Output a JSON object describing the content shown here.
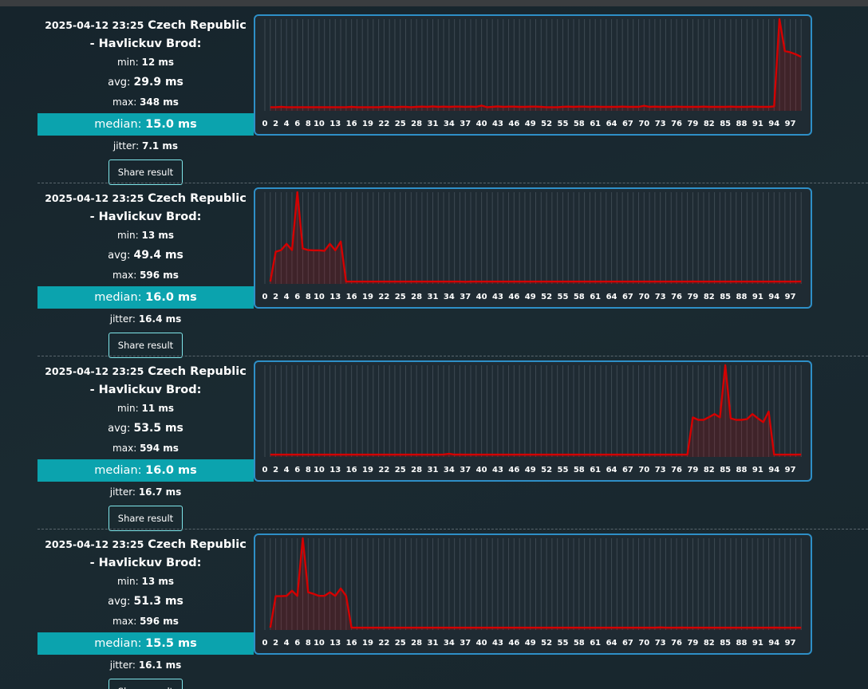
{
  "labels": {
    "min": "min:",
    "avg": "avg:",
    "max": "max:",
    "median": "median:",
    "jitter": "jitter:",
    "share": "Share result"
  },
  "chart_categories": [
    0,
    null,
    2,
    null,
    4,
    null,
    6,
    null,
    8,
    null,
    10,
    null,
    null,
    13,
    null,
    null,
    16,
    null,
    null,
    19,
    null,
    null,
    22,
    null,
    null,
    25,
    null,
    null,
    28,
    null,
    null,
    31,
    null,
    null,
    34,
    null,
    null,
    37,
    null,
    null,
    40,
    null,
    null,
    43,
    null,
    null,
    46,
    null,
    null,
    49,
    null,
    null,
    52,
    null,
    null,
    55,
    null,
    null,
    58,
    null,
    null,
    61,
    null,
    null,
    64,
    null,
    null,
    67,
    null,
    null,
    70,
    null,
    null,
    73,
    null,
    null,
    76,
    null,
    null,
    79,
    null,
    null,
    82,
    null,
    null,
    85,
    null,
    null,
    88,
    null,
    null,
    91,
    null,
    null,
    94,
    null,
    null,
    97,
    null,
    null
  ],
  "results": [
    {
      "date": "2025-04-12 23:25",
      "location": "Czech Republic - Havlickuv Brod:",
      "min": "12 ms",
      "avg": "29.9 ms",
      "max": "348 ms",
      "median": "15.0 ms",
      "jitter": "7.1 ms",
      "chart": {
        "type": "line",
        "color": "#d40000",
        "values": [
          null,
          14,
          14,
          15,
          14,
          14,
          14,
          14,
          14,
          14,
          14,
          14,
          14,
          14,
          14,
          14,
          15,
          14,
          14,
          14,
          14,
          14,
          15,
          15,
          14,
          15,
          15,
          14,
          15,
          16,
          15,
          17,
          15,
          16,
          15,
          16,
          16,
          15,
          16,
          15,
          20,
          14,
          15,
          17,
          15,
          16,
          16,
          15,
          15,
          16,
          16,
          15,
          14,
          14,
          14,
          15,
          16,
          15,
          16,
          16,
          15,
          16,
          15,
          15,
          15,
          15,
          16,
          15,
          15,
          15,
          19,
          15,
          16,
          15,
          15,
          15,
          16,
          15,
          15,
          15,
          15,
          16,
          15,
          15,
          15,
          15,
          16,
          15,
          15,
          15,
          16,
          15,
          15,
          15,
          17,
          348,
          227,
          222,
          215,
          205
        ]
      }
    },
    {
      "date": "2025-04-12 23:25",
      "location": "Czech Republic - Havlickuv Brod:",
      "min": "13 ms",
      "avg": "49.4 ms",
      "max": "596 ms",
      "median": "16.0 ms",
      "jitter": "16.4 ms",
      "chart": {
        "type": "line",
        "color": "#d40000",
        "values": [
          null,
          15,
          209,
          220,
          260,
          220,
          596,
          230,
          220,
          218,
          218,
          215,
          260,
          218,
          275,
          15,
          15,
          15,
          15,
          15,
          15,
          15,
          15,
          15,
          15,
          15,
          15,
          15,
          15,
          15,
          15,
          15,
          15,
          15,
          15,
          15,
          15,
          14,
          15,
          15,
          15,
          15,
          15,
          15,
          15,
          15,
          15,
          15,
          15,
          15,
          15,
          15,
          15,
          15,
          15,
          15,
          15,
          15,
          15,
          15,
          15,
          15,
          15,
          15,
          15,
          15,
          15,
          15,
          15,
          15,
          15,
          15,
          15,
          15,
          15,
          15,
          15,
          15,
          15,
          16,
          15,
          15,
          15,
          15,
          15,
          15,
          15,
          15,
          15,
          15,
          15,
          15,
          15,
          15,
          15,
          15,
          15,
          15,
          15,
          16
        ]
      }
    },
    {
      "date": "2025-04-12 23:25",
      "location": "Czech Republic - Havlickuv Brod:",
      "min": "11 ms",
      "avg": "53.5 ms",
      "max": "594 ms",
      "median": "16.0 ms",
      "jitter": "16.7 ms",
      "chart": {
        "type": "line",
        "color": "#d40000",
        "values": [
          null,
          15,
          15,
          15,
          15,
          15,
          15,
          15,
          15,
          15,
          15,
          15,
          15,
          15,
          15,
          15,
          15,
          15,
          15,
          15,
          15,
          15,
          15,
          15,
          15,
          15,
          15,
          15,
          15,
          15,
          15,
          15,
          15,
          16,
          20,
          15,
          16,
          15,
          15,
          15,
          15,
          15,
          15,
          15,
          15,
          15,
          15,
          15,
          15,
          15,
          15,
          15,
          15,
          15,
          15,
          15,
          15,
          15,
          15,
          15,
          15,
          15,
          15,
          15,
          15,
          15,
          15,
          15,
          15,
          15,
          15,
          15,
          15,
          15,
          15,
          15,
          15,
          15,
          15,
          256,
          240,
          240,
          258,
          278,
          256,
          594,
          250,
          240,
          240,
          245,
          278,
          250,
          225,
          294,
          15,
          15,
          15,
          15,
          15,
          16
        ]
      }
    },
    {
      "date": "2025-04-12 23:25",
      "location": "Czech Republic - Havlickuv Brod:",
      "min": "13 ms",
      "avg": "51.3 ms",
      "max": "596 ms",
      "median": "15.5 ms",
      "jitter": "16.1 ms",
      "chart": {
        "type": "line",
        "color": "#d40000",
        "values": [
          null,
          15,
          220,
          220,
          222,
          255,
          222,
          596,
          245,
          235,
          222,
          222,
          245,
          222,
          270,
          222,
          15,
          15,
          15,
          15,
          15,
          15,
          15,
          15,
          15,
          15,
          15,
          15,
          15,
          15,
          15,
          15,
          15,
          15,
          15,
          15,
          15,
          15,
          15,
          15,
          15,
          15,
          15,
          15,
          15,
          15,
          15,
          15,
          15,
          15,
          15,
          15,
          15,
          15,
          15,
          15,
          15,
          15,
          15,
          15,
          15,
          15,
          15,
          15,
          15,
          15,
          15,
          15,
          15,
          15,
          15,
          15,
          15,
          17,
          15,
          15,
          15,
          16,
          15,
          15,
          15,
          15,
          15,
          15,
          15,
          15,
          15,
          15,
          15,
          15,
          15,
          15,
          15,
          15,
          16,
          15,
          15,
          15,
          15,
          15
        ]
      }
    }
  ]
}
